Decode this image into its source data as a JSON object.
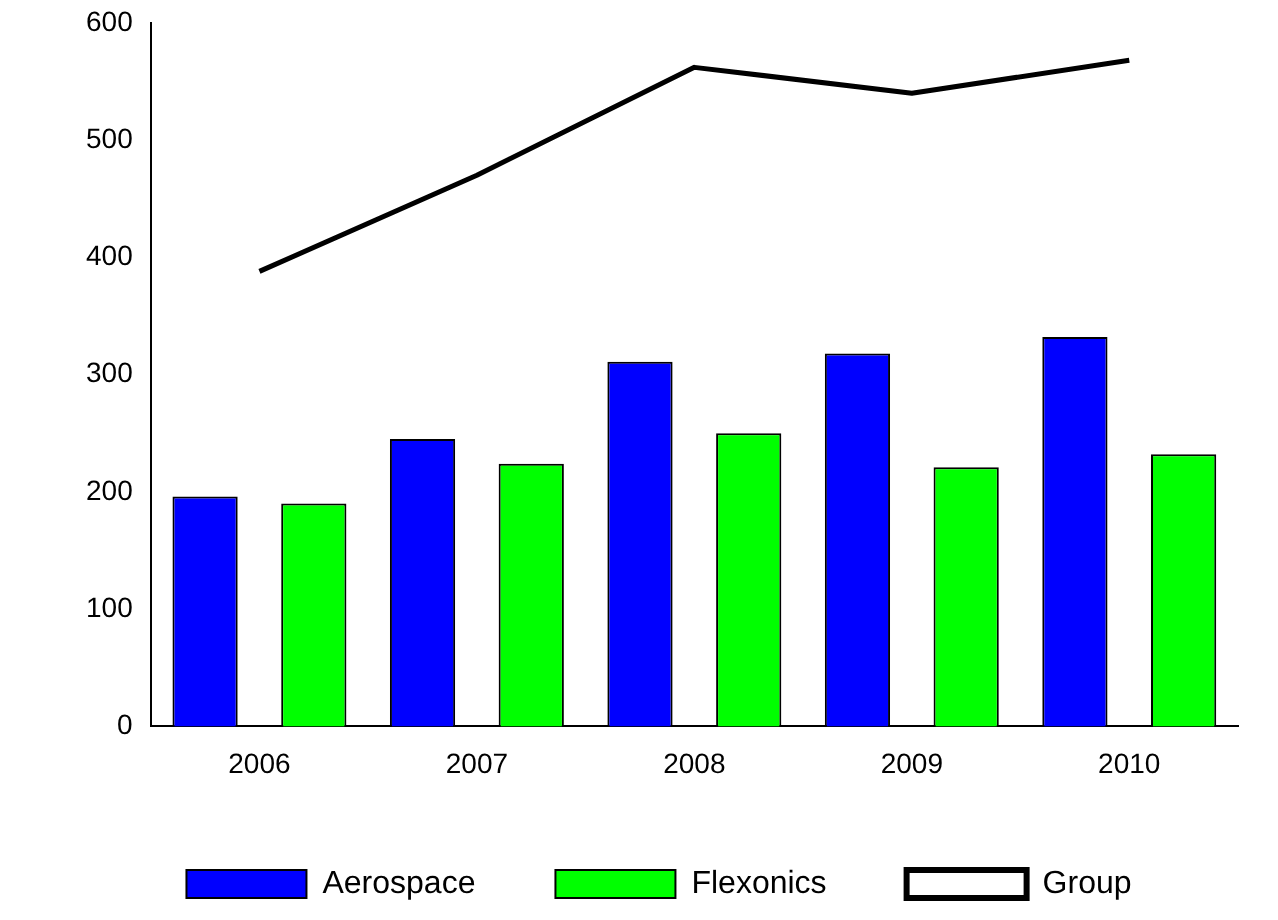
{
  "chart_data": {
    "type": "bar",
    "categories": [
      "2006",
      "2007",
      "2008",
      "2009",
      "2010"
    ],
    "series": [
      {
        "name": "Aerospace",
        "color": "#0000ff",
        "values": [
          196,
          245,
          311,
          318,
          332
        ]
      },
      {
        "name": "Flexonics",
        "color": "#00ff00",
        "values": [
          190,
          224,
          250,
          221,
          232
        ]
      },
      {
        "name": "Group",
        "type": "line",
        "color": "#000000",
        "values": [
          388,
          470,
          562,
          540,
          568
        ]
      }
    ],
    "ylim": [
      0,
      600
    ],
    "yticks": [
      0,
      100,
      200,
      300,
      400,
      500,
      600
    ],
    "grid": false,
    "legend": "bottom",
    "marker": "none"
  }
}
